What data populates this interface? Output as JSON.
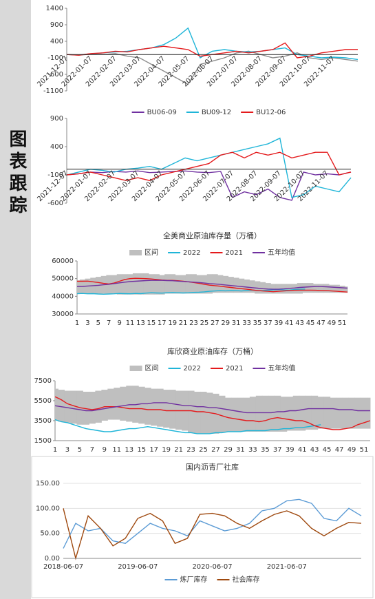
{
  "sidebar": "图表跟踪",
  "chart_data": [
    {
      "type": "line",
      "categories": [
        "2021-12-07",
        null,
        "2022-01-07",
        null,
        "2022-02-07",
        null,
        "2022-03-07",
        null,
        "2022-04-07",
        null,
        "2022-05-07",
        null,
        "2022-06-07",
        null,
        "2022-07-07",
        null,
        "2022-08-07",
        null,
        "2022-09-07",
        null,
        "2022-10-07",
        null,
        "2022-11-07",
        null,
        null
      ],
      "ylim": [
        -1100,
        1400
      ],
      "yticks": [
        1400,
        900,
        400,
        -100,
        -600,
        -1100
      ],
      "series": [
        {
          "color": "#8c8c8c",
          "values": [
            0,
            -20,
            10,
            0,
            30,
            -50,
            -100,
            -300,
            -500,
            -700,
            -900,
            -300,
            -200,
            -100,
            50,
            100,
            0,
            -100,
            -50,
            50,
            -100,
            -150,
            -100,
            -150,
            -200
          ]
        },
        {
          "color": "#1fb5d8",
          "values": [
            0,
            -10,
            20,
            50,
            80,
            100,
            150,
            200,
            300,
            500,
            800,
            -100,
            100,
            150,
            100,
            80,
            100,
            150,
            200,
            0,
            -50,
            -100,
            -80,
            -100,
            -150
          ]
        },
        {
          "color": "#e41a1c",
          "values": [
            0,
            -20,
            30,
            50,
            100,
            80,
            150,
            200,
            250,
            200,
            150,
            -50,
            0,
            50,
            100,
            50,
            100,
            150,
            350,
            -100,
            -50,
            50,
            100,
            150,
            150
          ]
        }
      ]
    },
    {
      "type": "line",
      "categories": [
        "2021-12-07",
        null,
        "2022-01-07",
        null,
        "2022-02-07",
        null,
        "2022-03-07",
        null,
        "2022-04-07",
        null,
        "2022-05-07",
        null,
        "2022-06-07",
        null,
        "2022-07-07",
        null,
        "2022-08-07",
        null,
        "2022-09-07",
        null,
        "2022-10-07",
        null,
        "2022-11-07",
        null,
        null
      ],
      "ylim": [
        -600,
        900
      ],
      "yticks": [
        900,
        400,
        -100,
        -600
      ],
      "series": [
        {
          "name": "BU06-09",
          "color": "#7030a0",
          "values": [
            -100,
            -80,
            -50,
            -60,
            -40,
            -50,
            -30,
            -60,
            -50,
            -40,
            -30,
            -50,
            -60,
            -40,
            -500,
            -400,
            -450,
            -350,
            -500,
            -550,
            -50,
            -100,
            -80,
            -100,
            -50
          ]
        },
        {
          "name": "BU09-12",
          "color": "#1fb5d8",
          "values": [
            -100,
            -50,
            0,
            -20,
            -50,
            0,
            20,
            50,
            0,
            100,
            200,
            150,
            200,
            250,
            300,
            350,
            400,
            450,
            550,
            -500,
            -450,
            -300,
            -350,
            -400,
            -150
          ]
        },
        {
          "name": "BU12-06",
          "color": "#e41a1c",
          "values": [
            -100,
            -80,
            -50,
            -100,
            -150,
            -200,
            -150,
            -200,
            -100,
            -50,
            0,
            50,
            100,
            250,
            300,
            200,
            300,
            250,
            300,
            200,
            250,
            300,
            300,
            -100,
            -50
          ]
        }
      ]
    },
    {
      "type": "line",
      "title": "全美商业原油库存量（万桶）",
      "categories": [
        1,
        null,
        3,
        null,
        5,
        null,
        7,
        null,
        9,
        null,
        11,
        null,
        13,
        null,
        15,
        null,
        17,
        null,
        19,
        null,
        21,
        null,
        23,
        null,
        25,
        null,
        27,
        null,
        29,
        null,
        31,
        null,
        33,
        null,
        35,
        null,
        37,
        null,
        39,
        null,
        41,
        null,
        43,
        null,
        45,
        null,
        47,
        null,
        49,
        null,
        51,
        null
      ],
      "ylim": [
        30000,
        60000
      ],
      "yticks": [
        30000,
        40000,
        50000,
        60000
      ],
      "series": [
        {
          "name": "区间",
          "color": "#bfbfbf",
          "values": [
            49000,
            49500,
            50000,
            50500,
            51000,
            51500,
            52000,
            52000,
            52500,
            52500,
            52500,
            53000,
            53000,
            53000,
            52500,
            52500,
            52000,
            52500,
            52500,
            52000,
            52000,
            52500,
            52500,
            52000,
            52000,
            52500,
            52500,
            52000,
            51500,
            51000,
            50500,
            50000,
            49500,
            49000,
            48500,
            48000,
            47500,
            47000,
            47000,
            47000,
            47000,
            47000,
            47500,
            47500,
            47500,
            47000,
            47000,
            47000,
            46500,
            46500,
            46000,
            45500
          ],
          "lower": [
            41500,
            41500,
            41500,
            41500,
            41500,
            41500,
            41500,
            41500,
            41000,
            41000,
            41000,
            41000,
            41000,
            41000,
            41000,
            41000,
            41000,
            41500,
            41500,
            41500,
            41500,
            41500,
            41500,
            41500,
            41500,
            41500,
            42000,
            42000,
            42000,
            42000,
            42000,
            42000,
            42000,
            42000,
            41500,
            41500,
            41500,
            41500,
            41500,
            41500,
            41500,
            41500,
            41500,
            42000,
            42000,
            42000,
            42000,
            42000,
            42000,
            42000,
            42000,
            42000
          ]
        },
        {
          "name": "2022",
          "color": "#1fb5d8",
          "values": [
            41500,
            41600,
            41400,
            41500,
            41300,
            41200,
            41300,
            41400,
            41600,
            41500,
            41400,
            41600,
            41500,
            41800,
            42000,
            41900,
            41800,
            42000,
            42100,
            42000,
            41900,
            42000,
            42200,
            42300,
            42500,
            42800,
            43000,
            43200,
            43100,
            43300,
            43200,
            43000,
            43300,
            43500,
            43200,
            43300,
            43500,
            43600,
            43800,
            43600,
            43500,
            43800,
            44000,
            44100,
            null,
            null,
            null,
            null,
            null,
            null,
            null,
            null
          ]
        },
        {
          "name": "2021",
          "color": "#e41a1c",
          "values": [
            48500,
            48500,
            48600,
            48200,
            47800,
            47300,
            47000,
            47500,
            48500,
            49500,
            50000,
            50200,
            50100,
            50000,
            49800,
            49500,
            49200,
            49000,
            49000,
            48800,
            48500,
            48200,
            47800,
            47300,
            46800,
            46300,
            46000,
            45700,
            45300,
            45000,
            44600,
            44300,
            44000,
            43600,
            43300,
            43000,
            42800,
            42600,
            42800,
            43000,
            43200,
            43400,
            43500,
            43500,
            43500,
            43400,
            43300,
            43200,
            43000,
            42800,
            42600,
            42400
          ]
        },
        {
          "name": "五年均值",
          "color": "#7030a0",
          "values": [
            45500,
            45600,
            45800,
            46000,
            46200,
            46500,
            46800,
            47200,
            47600,
            48000,
            48300,
            48500,
            48700,
            48900,
            49000,
            49000,
            49000,
            48900,
            48800,
            48600,
            48400,
            48200,
            48000,
            47800,
            47500,
            47200,
            47000,
            46700,
            46400,
            46100,
            45800,
            45500,
            45200,
            44900,
            44600,
            44300,
            44100,
            44000,
            44000,
            44200,
            44500,
            44700,
            45000,
            45200,
            45400,
            45500,
            45500,
            45400,
            45200,
            45000,
            44800,
            44600
          ]
        }
      ]
    },
    {
      "type": "line",
      "title": "库欣商业原油库存（万桶）",
      "categories": [
        1,
        null,
        3,
        null,
        5,
        null,
        7,
        null,
        9,
        null,
        11,
        null,
        13,
        null,
        15,
        null,
        17,
        null,
        19,
        null,
        21,
        null,
        23,
        null,
        25,
        null,
        27,
        null,
        29,
        null,
        31,
        null,
        33,
        null,
        35,
        null,
        37,
        null,
        39,
        null,
        41,
        null,
        43,
        null,
        45,
        null,
        47,
        null,
        49,
        null,
        51,
        null
      ],
      "ylim": [
        1500,
        7500
      ],
      "yticks": [
        1500,
        3500,
        5500,
        7500
      ],
      "series": [
        {
          "name": "区间",
          "color": "#bfbfbf",
          "values": [
            6700,
            6600,
            6500,
            6500,
            6500,
            6400,
            6400,
            6500,
            6600,
            6700,
            6800,
            6900,
            7000,
            7000,
            6900,
            6800,
            6700,
            6700,
            6600,
            6600,
            6500,
            6500,
            6500,
            6400,
            6400,
            6300,
            6200,
            6000,
            5800,
            5800,
            5800,
            5800,
            5900,
            6000,
            6000,
            6000,
            6000,
            5900,
            5900,
            6000,
            6000,
            6000,
            6000,
            5900,
            5900,
            5800,
            5800,
            5800,
            5800,
            5800,
            5800,
            5800
          ],
          "lower": [
            3500,
            3400,
            3300,
            3200,
            3100,
            3100,
            3200,
            3300,
            3500,
            3600,
            3600,
            3500,
            3400,
            3300,
            3200,
            3100,
            3000,
            2900,
            2800,
            2700,
            2600,
            2500,
            2300,
            2200,
            2200,
            2200,
            2200,
            2300,
            2400,
            2400,
            2400,
            2400,
            2400,
            2400,
            2400,
            2400,
            2400,
            2400,
            2500,
            2500,
            2500,
            2600,
            2600,
            2700,
            2700,
            2700,
            2700,
            2700,
            2700,
            2700,
            2700,
            2700
          ]
        },
        {
          "name": "2022",
          "color": "#1fb5d8",
          "values": [
            3600,
            3400,
            3300,
            3100,
            2900,
            2700,
            2600,
            2500,
            2400,
            2400,
            2500,
            2600,
            2700,
            2700,
            2800,
            2900,
            2800,
            2700,
            2600,
            2500,
            2400,
            2300,
            2300,
            2200,
            2200,
            2200,
            2300,
            2300,
            2400,
            2400,
            2400,
            2500,
            2500,
            2500,
            2500,
            2600,
            2600,
            2700,
            2700,
            2800,
            2800,
            2900,
            3000,
            3100,
            null,
            null,
            null,
            null,
            null,
            null,
            null,
            null
          ]
        },
        {
          "name": "2021",
          "color": "#e41a1c",
          "values": [
            5900,
            5600,
            5200,
            5000,
            4800,
            4700,
            4600,
            4700,
            4900,
            4900,
            4900,
            4800,
            4700,
            4700,
            4700,
            4600,
            4600,
            4600,
            4500,
            4500,
            4500,
            4500,
            4500,
            4400,
            4400,
            4300,
            4200,
            4000,
            3800,
            3700,
            3600,
            3500,
            3500,
            3400,
            3500,
            3700,
            3800,
            3700,
            3600,
            3500,
            3500,
            3300,
            3000,
            2800,
            2700,
            2600,
            2600,
            2700,
            2800,
            3100,
            3300,
            3500
          ]
        },
        {
          "name": "五年均值",
          "color": "#7030a0",
          "values": [
            5000,
            4900,
            4800,
            4700,
            4600,
            4500,
            4500,
            4600,
            4700,
            4800,
            4900,
            5000,
            5100,
            5100,
            5200,
            5200,
            5300,
            5300,
            5300,
            5200,
            5100,
            5000,
            5000,
            4900,
            4900,
            4800,
            4800,
            4700,
            4600,
            4500,
            4400,
            4300,
            4300,
            4300,
            4300,
            4300,
            4400,
            4400,
            4500,
            4500,
            4600,
            4700,
            4700,
            4700,
            4700,
            4700,
            4600,
            4600,
            4600,
            4500,
            4500,
            4500
          ]
        }
      ]
    },
    {
      "type": "line",
      "title": "国内沥青厂社库",
      "grid": true,
      "categories": [
        "2018-06-07",
        null,
        null,
        null,
        null,
        null,
        "2019-06-07",
        null,
        null,
        null,
        null,
        null,
        "2020-06-07",
        null,
        null,
        null,
        null,
        null,
        "2021-06-07",
        null,
        null,
        null,
        null,
        null,
        null
      ],
      "ylim": [
        0,
        150
      ],
      "yticks": [
        {
          "value": 0,
          "label": "0.00"
        },
        {
          "value": 50,
          "label": "50.00"
        },
        {
          "value": 100,
          "label": "100.00"
        },
        {
          "value": 150,
          "label": "150.00"
        }
      ],
      "series": [
        {
          "name": "炼厂库存",
          "color": "#5b9bd5",
          "values": [
            20,
            70,
            55,
            60,
            35,
            30,
            50,
            70,
            60,
            55,
            45,
            75,
            65,
            55,
            60,
            70,
            95,
            100,
            115,
            118,
            110,
            80,
            75,
            100,
            85
          ]
        },
        {
          "name": "社会库存",
          "color": "#9e480e",
          "values": [
            100,
            0,
            85,
            60,
            25,
            40,
            80,
            90,
            75,
            30,
            40,
            88,
            90,
            85,
            70,
            60,
            75,
            88,
            95,
            85,
            60,
            45,
            60,
            72,
            70
          ]
        }
      ]
    }
  ]
}
